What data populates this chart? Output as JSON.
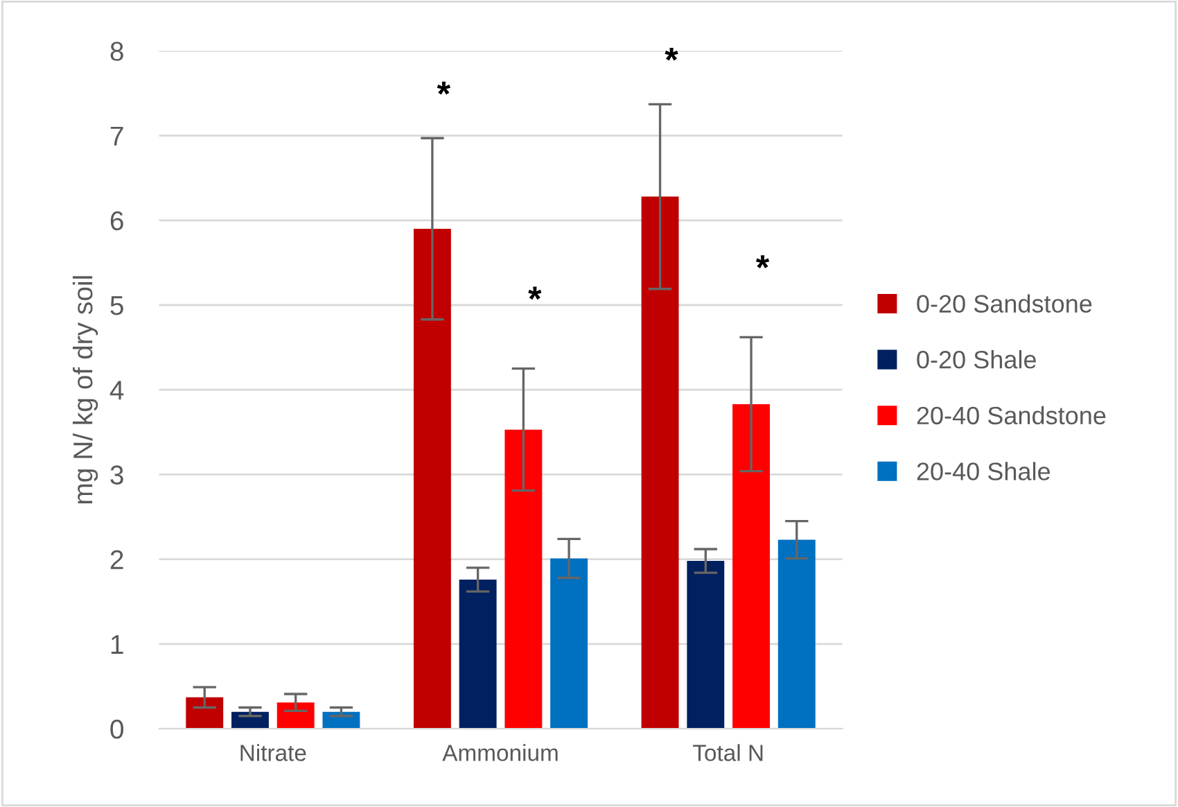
{
  "chart_data": {
    "type": "bar",
    "ylabel": "mg N/ kg of dry soil",
    "categories": [
      "Nitrate",
      "Ammonium",
      "Total N"
    ],
    "series": [
      {
        "name": "0-20 Sandstone",
        "color": "#c00000",
        "values": [
          0.37,
          5.9,
          6.28
        ],
        "errors": [
          0.12,
          1.07,
          1.09
        ]
      },
      {
        "name": "0-20 Shale",
        "color": "#002060",
        "values": [
          0.2,
          1.76,
          1.98
        ],
        "errors": [
          0.05,
          0.14,
          0.14
        ]
      },
      {
        "name": "20-40 Sandstone",
        "color": "#ff0000",
        "values": [
          0.31,
          3.53,
          3.83
        ],
        "errors": [
          0.1,
          0.72,
          0.79
        ]
      },
      {
        "name": "20-40 Shale",
        "color": "#0070c0",
        "values": [
          0.2,
          2.01,
          2.23
        ],
        "errors": [
          0.05,
          0.23,
          0.22
        ]
      }
    ],
    "annotations": [
      "*",
      "*",
      "*",
      "*"
    ],
    "ylim": [
      0,
      8
    ],
    "yticks": [
      0,
      1,
      2,
      3,
      4,
      5,
      6,
      7,
      8
    ],
    "grid": "y",
    "legend": "right"
  }
}
